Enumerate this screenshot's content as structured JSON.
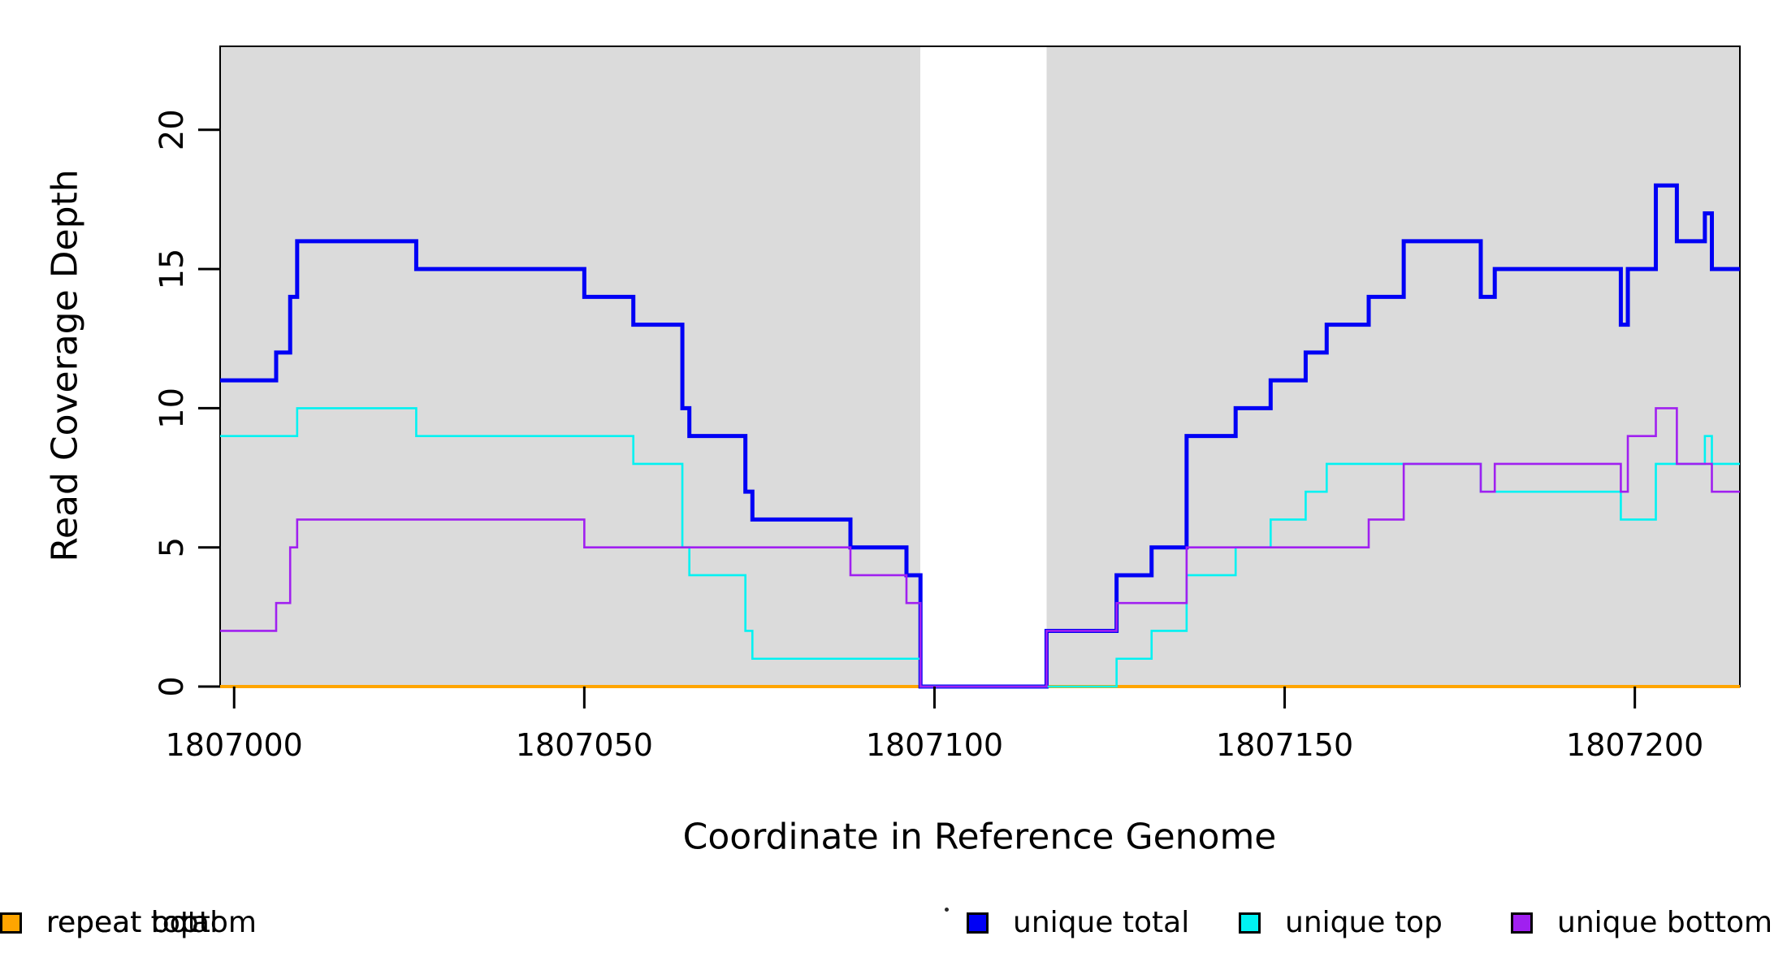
{
  "figure": {
    "background": "#ffffff",
    "frame_color": "#000000"
  },
  "y_axis": {
    "title": "Read Coverage Depth"
  },
  "x_axis": {
    "title": "Coordinate in Reference Genome"
  },
  "legend": [
    {
      "label": "unique total",
      "color": "#0000f5"
    },
    {
      "label": "unique top",
      "color": "#00f2f2"
    },
    {
      "label": "unique bottom",
      "color": "#a020f0"
    },
    {
      "label": "repeat total",
      "color": "#ff0000"
    },
    {
      "label": "repeat top",
      "color": "#ffff00"
    },
    {
      "label": "repeat bottom",
      "color": "#ffa500"
    }
  ],
  "chart_data": {
    "type": "line",
    "line_style": "step-post",
    "title": "",
    "xlabel": "Coordinate in Reference Genome",
    "ylabel": "Read Coverage Depth",
    "xlim": [
      1806998,
      1807215
    ],
    "ylim": [
      0,
      23
    ],
    "x_ticks": [
      1807000,
      1807050,
      1807100,
      1807150,
      1807200
    ],
    "y_ticks": [
      0,
      5,
      10,
      15,
      20
    ],
    "grid": false,
    "legend_position": "bottom",
    "shaded_regions": [
      {
        "x0": 1806998,
        "x1": 1807098,
        "color": "#dbdbdb"
      },
      {
        "x0": 1807098,
        "x1": 1807116,
        "color": "#ffffff"
      },
      {
        "x0": 1807116,
        "x1": 1807215,
        "color": "#dbdbdb"
      }
    ],
    "x_end": 1807215,
    "series": [
      {
        "name": "repeat total",
        "color": "#ff0000",
        "stroke_width": 2.6,
        "steps": [
          [
            1806998,
            0
          ]
        ]
      },
      {
        "name": "repeat top",
        "color": "#ffff00",
        "stroke_width": 2.6,
        "steps": [
          [
            1806998,
            0
          ]
        ]
      },
      {
        "name": "repeat bottom",
        "color": "#ffa500",
        "stroke_width": 4,
        "steps": [
          [
            1806998,
            0
          ]
        ]
      },
      {
        "name": "unique total",
        "color": "#0000f5",
        "stroke_width": 5,
        "steps": [
          [
            1806998,
            11
          ],
          [
            1807006,
            12
          ],
          [
            1807008,
            14
          ],
          [
            1807009,
            16
          ],
          [
            1807026,
            15
          ],
          [
            1807050,
            14
          ],
          [
            1807057,
            13
          ],
          [
            1807064,
            10
          ],
          [
            1807065,
            9
          ],
          [
            1807073,
            7
          ],
          [
            1807074,
            6
          ],
          [
            1807088,
            5
          ],
          [
            1807096,
            4
          ],
          [
            1807098,
            0
          ],
          [
            1807116,
            2
          ],
          [
            1807126,
            4
          ],
          [
            1807131,
            5
          ],
          [
            1807136,
            9
          ],
          [
            1807143,
            10
          ],
          [
            1807148,
            11
          ],
          [
            1807153,
            12
          ],
          [
            1807156,
            13
          ],
          [
            1807162,
            14
          ],
          [
            1807167,
            16
          ],
          [
            1807178,
            14
          ],
          [
            1807180,
            15
          ],
          [
            1807198,
            13
          ],
          [
            1807199,
            15
          ],
          [
            1807203,
            18
          ],
          [
            1807206,
            16
          ],
          [
            1807210,
            17
          ],
          [
            1807211,
            15
          ]
        ]
      },
      {
        "name": "unique top",
        "color": "#00f2f2",
        "stroke_width": 2.6,
        "steps": [
          [
            1806998,
            9
          ],
          [
            1807009,
            10
          ],
          [
            1807026,
            9
          ],
          [
            1807057,
            8
          ],
          [
            1807064,
            5
          ],
          [
            1807065,
            4
          ],
          [
            1807073,
            2
          ],
          [
            1807074,
            1
          ],
          [
            1807098,
            0
          ],
          [
            1807126,
            1
          ],
          [
            1807131,
            2
          ],
          [
            1807136,
            4
          ],
          [
            1807143,
            5
          ],
          [
            1807148,
            6
          ],
          [
            1807153,
            7
          ],
          [
            1807156,
            8
          ],
          [
            1807178,
            7
          ],
          [
            1807198,
            6
          ],
          [
            1807203,
            8
          ],
          [
            1807210,
            9
          ],
          [
            1807211,
            8
          ]
        ]
      },
      {
        "name": "unique bottom",
        "color": "#a020f0",
        "stroke_width": 2.6,
        "steps": [
          [
            1806998,
            2
          ],
          [
            1807006,
            3
          ],
          [
            1807008,
            5
          ],
          [
            1807009,
            6
          ],
          [
            1807050,
            5
          ],
          [
            1807088,
            4
          ],
          [
            1807096,
            3
          ],
          [
            1807098,
            0
          ],
          [
            1807116,
            2
          ],
          [
            1807126,
            3
          ],
          [
            1807136,
            5
          ],
          [
            1807162,
            6
          ],
          [
            1807167,
            8
          ],
          [
            1807178,
            7
          ],
          [
            1807180,
            8
          ],
          [
            1807198,
            7
          ],
          [
            1807199,
            9
          ],
          [
            1807203,
            10
          ],
          [
            1807206,
            8
          ],
          [
            1807211,
            7
          ]
        ]
      }
    ]
  }
}
